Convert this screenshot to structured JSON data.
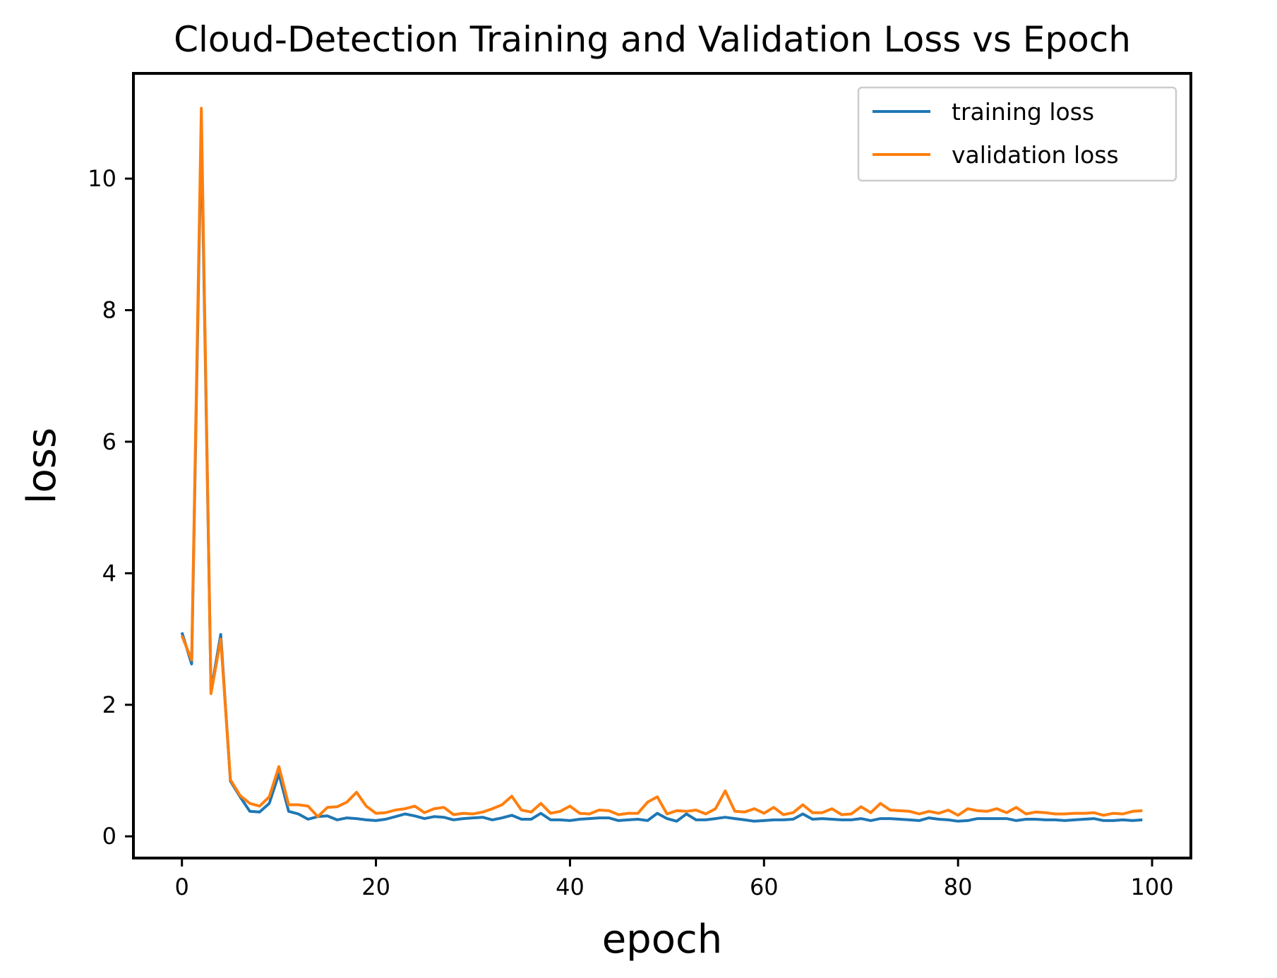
{
  "chart_data": {
    "type": "line",
    "title": "Cloud-Detection Training and Validation Loss vs Epoch",
    "xlabel": "epoch",
    "ylabel": "loss",
    "xlim": [
      -5,
      104
    ],
    "ylim": [
      -0.33,
      11.6
    ],
    "xticks": [
      0,
      20,
      40,
      60,
      80,
      100
    ],
    "yticks": [
      0,
      2,
      4,
      6,
      8,
      10
    ],
    "grid": false,
    "legend_position": "top-right",
    "x": [
      0,
      1,
      2,
      3,
      4,
      5,
      6,
      7,
      8,
      9,
      10,
      11,
      12,
      13,
      14,
      15,
      16,
      17,
      18,
      19,
      20,
      21,
      22,
      23,
      24,
      25,
      26,
      27,
      28,
      29,
      30,
      31,
      32,
      33,
      34,
      35,
      36,
      37,
      38,
      39,
      40,
      41,
      42,
      43,
      44,
      45,
      46,
      47,
      48,
      49,
      50,
      51,
      52,
      53,
      54,
      55,
      56,
      57,
      58,
      59,
      60,
      61,
      62,
      63,
      64,
      65,
      66,
      67,
      68,
      69,
      70,
      71,
      72,
      73,
      74,
      75,
      76,
      77,
      78,
      79,
      80,
      81,
      82,
      83,
      84,
      85,
      86,
      87,
      88,
      89,
      90,
      91,
      92,
      93,
      94,
      95,
      96,
      97,
      98,
      99
    ],
    "series": [
      {
        "name": "training loss",
        "color": "#1f77b4",
        "values": [
          3.1,
          2.62,
          10.8,
          2.2,
          3.07,
          0.84,
          0.6,
          0.38,
          0.37,
          0.5,
          0.95,
          0.38,
          0.34,
          0.26,
          0.3,
          0.31,
          0.25,
          0.28,
          0.27,
          0.25,
          0.24,
          0.26,
          0.3,
          0.34,
          0.31,
          0.27,
          0.3,
          0.29,
          0.25,
          0.27,
          0.28,
          0.29,
          0.25,
          0.28,
          0.32,
          0.26,
          0.26,
          0.35,
          0.25,
          0.25,
          0.24,
          0.26,
          0.27,
          0.28,
          0.28,
          0.24,
          0.25,
          0.26,
          0.24,
          0.35,
          0.27,
          0.23,
          0.34,
          0.25,
          0.25,
          0.27,
          0.29,
          0.27,
          0.25,
          0.23,
          0.24,
          0.25,
          0.25,
          0.26,
          0.34,
          0.26,
          0.27,
          0.26,
          0.25,
          0.25,
          0.27,
          0.24,
          0.27,
          0.27,
          0.26,
          0.25,
          0.24,
          0.28,
          0.26,
          0.25,
          0.23,
          0.24,
          0.27,
          0.27,
          0.27,
          0.27,
          0.24,
          0.26,
          0.26,
          0.25,
          0.25,
          0.24,
          0.25,
          0.26,
          0.27,
          0.24,
          0.24,
          0.25,
          0.24,
          0.25
        ]
      },
      {
        "name": "validation loss",
        "color": "#ff7f0e",
        "values": [
          3.05,
          2.68,
          11.07,
          2.17,
          3.0,
          0.86,
          0.62,
          0.5,
          0.46,
          0.6,
          1.06,
          0.48,
          0.48,
          0.46,
          0.3,
          0.44,
          0.45,
          0.52,
          0.67,
          0.46,
          0.35,
          0.36,
          0.4,
          0.42,
          0.46,
          0.36,
          0.42,
          0.44,
          0.33,
          0.35,
          0.34,
          0.37,
          0.42,
          0.48,
          0.61,
          0.4,
          0.37,
          0.5,
          0.35,
          0.38,
          0.46,
          0.35,
          0.34,
          0.4,
          0.39,
          0.33,
          0.35,
          0.35,
          0.52,
          0.6,
          0.34,
          0.39,
          0.38,
          0.4,
          0.34,
          0.42,
          0.69,
          0.38,
          0.37,
          0.42,
          0.35,
          0.44,
          0.33,
          0.36,
          0.48,
          0.36,
          0.36,
          0.42,
          0.33,
          0.34,
          0.45,
          0.36,
          0.5,
          0.4,
          0.39,
          0.38,
          0.34,
          0.38,
          0.35,
          0.4,
          0.32,
          0.42,
          0.39,
          0.38,
          0.42,
          0.36,
          0.44,
          0.34,
          0.37,
          0.36,
          0.34,
          0.34,
          0.35,
          0.35,
          0.36,
          0.32,
          0.35,
          0.34,
          0.38,
          0.39
        ]
      }
    ]
  }
}
